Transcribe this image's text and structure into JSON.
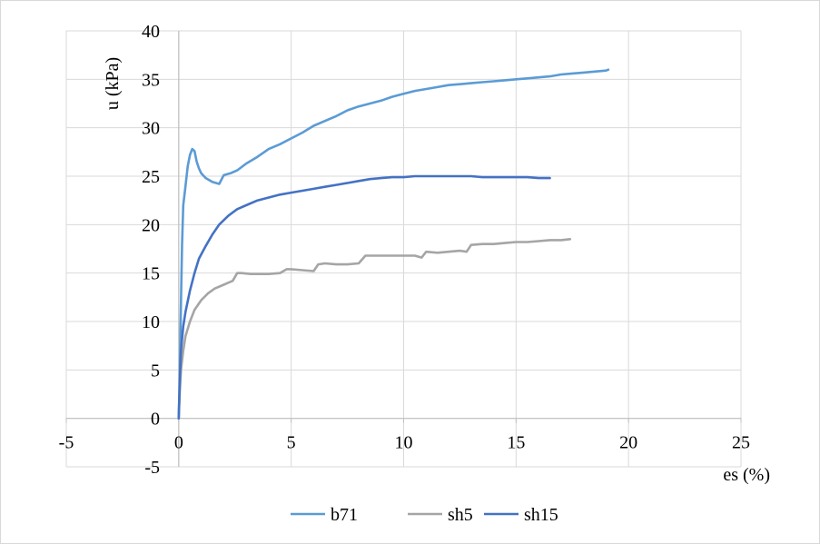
{
  "chart_data": {
    "type": "line",
    "xlabel": "es (%)",
    "ylabel": "u (kPa)",
    "xlim": [
      -5,
      25
    ],
    "ylim": [
      -5,
      40
    ],
    "x_ticks": [
      -5,
      0,
      5,
      10,
      15,
      20,
      25
    ],
    "y_ticks": [
      -5,
      0,
      5,
      10,
      15,
      20,
      25,
      30,
      35,
      40
    ],
    "grid": true,
    "legend_position": "bottom",
    "series": [
      {
        "name": "b71",
        "color": "#5B9BD5",
        "x": [
          0,
          0.05,
          0.1,
          0.15,
          0.2,
          0.3,
          0.4,
          0.5,
          0.6,
          0.7,
          0.8,
          0.9,
          1.0,
          1.2,
          1.5,
          1.8,
          2.0,
          2.3,
          2.6,
          3.0,
          3.5,
          4.0,
          4.5,
          5.0,
          5.5,
          6.0,
          6.5,
          7.0,
          7.5,
          8.0,
          8.5,
          9.0,
          9.5,
          10.0,
          10.5,
          11.0,
          11.5,
          12.0,
          12.5,
          13.0,
          13.5,
          14.0,
          14.5,
          15.0,
          15.5,
          16.0,
          16.5,
          17.0,
          17.5,
          18.0,
          18.5,
          19.0,
          19.1
        ],
        "y": [
          0,
          5,
          12,
          18,
          22,
          24,
          26,
          27.2,
          27.8,
          27.6,
          26.5,
          25.8,
          25.3,
          24.8,
          24.4,
          24.2,
          25.1,
          25.3,
          25.6,
          26.3,
          27.0,
          27.8,
          28.3,
          28.9,
          29.5,
          30.2,
          30.7,
          31.2,
          31.8,
          32.2,
          32.5,
          32.8,
          33.2,
          33.5,
          33.8,
          34.0,
          34.2,
          34.4,
          34.5,
          34.6,
          34.7,
          34.8,
          34.9,
          35.0,
          35.1,
          35.2,
          35.3,
          35.5,
          35.6,
          35.7,
          35.8,
          35.9,
          36.0
        ]
      },
      {
        "name": "sh5",
        "color": "#A5A5A5",
        "x": [
          0,
          0.05,
          0.1,
          0.2,
          0.3,
          0.5,
          0.7,
          1.0,
          1.3,
          1.6,
          2.0,
          2.4,
          2.6,
          2.8,
          3.2,
          3.6,
          4.0,
          4.5,
          4.8,
          5.0,
          5.5,
          6.0,
          6.2,
          6.5,
          7.0,
          7.5,
          8.0,
          8.3,
          8.5,
          9.0,
          9.5,
          10.0,
          10.5,
          10.8,
          11.0,
          11.5,
          12.0,
          12.5,
          12.8,
          13.0,
          13.5,
          14.0,
          14.5,
          15.0,
          15.5,
          16.0,
          16.5,
          17.0,
          17.4
        ],
        "y": [
          0,
          3,
          5,
          7,
          8.5,
          10,
          11.2,
          12.2,
          12.9,
          13.4,
          13.8,
          14.2,
          15.0,
          15.0,
          14.9,
          14.9,
          14.9,
          15.0,
          15.4,
          15.4,
          15.3,
          15.2,
          15.9,
          16.0,
          15.9,
          15.9,
          16.0,
          16.8,
          16.8,
          16.8,
          16.8,
          16.8,
          16.8,
          16.6,
          17.2,
          17.1,
          17.2,
          17.3,
          17.2,
          17.9,
          18.0,
          18.0,
          18.1,
          18.2,
          18.2,
          18.3,
          18.4,
          18.4,
          18.5
        ]
      },
      {
        "name": "sh15",
        "color": "#4472C4",
        "x": [
          0,
          0.05,
          0.1,
          0.2,
          0.3,
          0.5,
          0.7,
          0.9,
          1.2,
          1.5,
          1.8,
          2.2,
          2.6,
          3.0,
          3.5,
          4.0,
          4.5,
          5.0,
          5.5,
          6.0,
          6.5,
          7.0,
          7.5,
          8.0,
          8.5,
          9.0,
          9.5,
          10.0,
          10.5,
          11.0,
          11.5,
          12.0,
          12.5,
          13.0,
          13.5,
          14.0,
          14.5,
          15.0,
          15.5,
          16.0,
          16.5
        ],
        "y": [
          0,
          4,
          7,
          9.5,
          11,
          13.2,
          15.0,
          16.5,
          17.8,
          19.0,
          20.0,
          20.9,
          21.6,
          22.0,
          22.5,
          22.8,
          23.1,
          23.3,
          23.5,
          23.7,
          23.9,
          24.1,
          24.3,
          24.5,
          24.7,
          24.8,
          24.9,
          24.9,
          25.0,
          25.0,
          25.0,
          25.0,
          25.0,
          25.0,
          24.9,
          24.9,
          24.9,
          24.9,
          24.9,
          24.8,
          24.8
        ]
      }
    ]
  }
}
